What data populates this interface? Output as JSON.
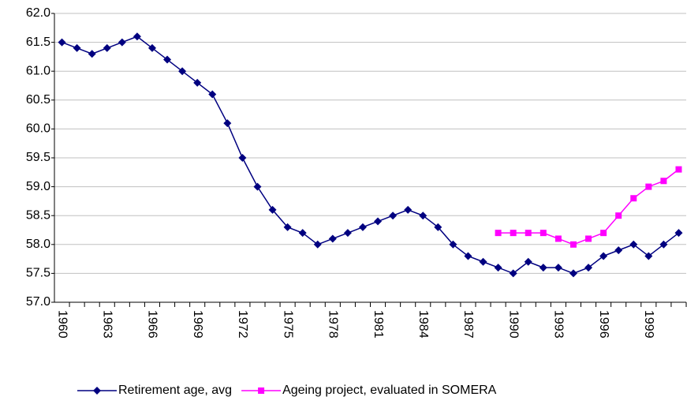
{
  "chart_data": {
    "type": "line",
    "categories": [
      "1960",
      null,
      null,
      "1963",
      null,
      null,
      "1966",
      null,
      null,
      "1969",
      null,
      null,
      "1972",
      null,
      null,
      "1975",
      null,
      null,
      "1978",
      null,
      null,
      "1981",
      null,
      null,
      "1984",
      null,
      null,
      "1987",
      null,
      null,
      "1990",
      null,
      null,
      "1993",
      null,
      null,
      "1996",
      null,
      null,
      "1999",
      null,
      null
    ],
    "series": [
      {
        "name": "Retirement age, avg",
        "color": "#000080",
        "marker": "diamond",
        "values": [
          61.5,
          61.4,
          61.3,
          61.4,
          61.5,
          61.6,
          61.4,
          61.2,
          61.0,
          60.8,
          60.6,
          60.1,
          59.5,
          59.0,
          58.6,
          58.3,
          58.2,
          58.0,
          58.1,
          58.2,
          58.3,
          58.4,
          58.5,
          58.6,
          58.5,
          58.3,
          58.0,
          57.8,
          57.7,
          57.6,
          57.5,
          57.7,
          57.6,
          57.6,
          57.5,
          57.6,
          57.8,
          57.9,
          58.0,
          57.8,
          58.0,
          58.2
        ]
      },
      {
        "name": "Ageing project, evaluated in SOMERA",
        "color": "#ff00ff",
        "marker": "square",
        "values": [
          null,
          null,
          null,
          null,
          null,
          null,
          null,
          null,
          null,
          null,
          null,
          null,
          null,
          null,
          null,
          null,
          null,
          null,
          null,
          null,
          null,
          null,
          null,
          null,
          null,
          null,
          null,
          null,
          null,
          58.2,
          58.2,
          58.2,
          58.2,
          58.1,
          58.0,
          58.1,
          58.2,
          58.5,
          58.8,
          59.0,
          59.1,
          59.3
        ]
      }
    ],
    "ylim": [
      57.0,
      62.0
    ],
    "yticks": [
      {
        "value": 57.0,
        "label": "57.0"
      },
      {
        "value": 57.5,
        "label": "57.5"
      },
      {
        "value": 58.0,
        "label": "58.0"
      },
      {
        "value": 58.5,
        "label": "58.5"
      },
      {
        "value": 59.0,
        "label": "59.0"
      },
      {
        "value": 59.5,
        "label": "59.5"
      },
      {
        "value": 60.0,
        "label": "60.0"
      },
      {
        "value": 60.5,
        "label": "60.5"
      },
      {
        "value": 61.0,
        "label": "61.0"
      },
      {
        "value": 61.5,
        "label": "61.5"
      },
      {
        "value": 62.0,
        "label": "62.0"
      }
    ],
    "grid": true,
    "legend": "bottom"
  }
}
